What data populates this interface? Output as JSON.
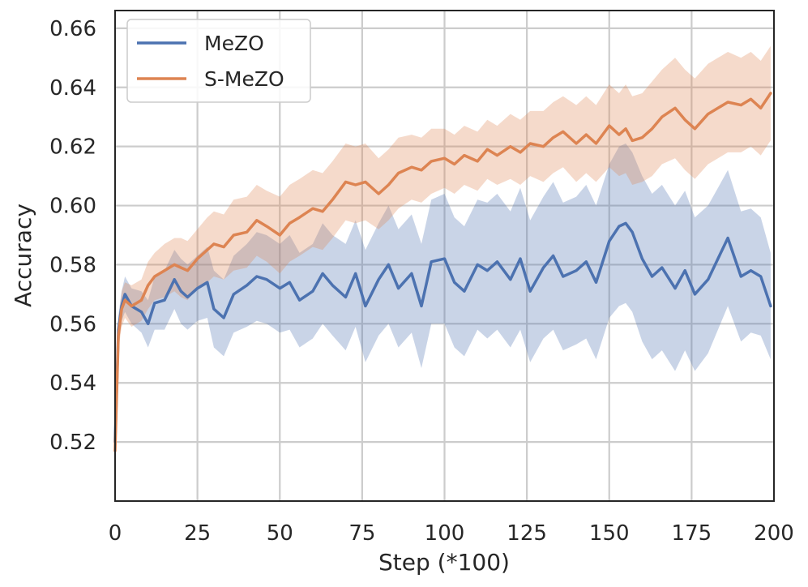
{
  "chart_data": {
    "type": "line",
    "xlabel": "Step (*100)",
    "ylabel": "Accuracy",
    "xlim": [
      0,
      200
    ],
    "ylim": [
      0.5,
      0.666
    ],
    "xticks": [
      0,
      25,
      50,
      75,
      100,
      125,
      150,
      175,
      200
    ],
    "yticks": [
      0.52,
      0.54,
      0.56,
      0.58,
      0.6,
      0.62,
      0.64,
      0.66
    ],
    "xtick_labels": [
      "0",
      "25",
      "50",
      "75",
      "100",
      "125",
      "150",
      "175",
      "200"
    ],
    "ytick_labels": [
      "0.52",
      "0.54",
      "0.56",
      "0.58",
      "0.60",
      "0.62",
      "0.64",
      "0.66"
    ],
    "grid": true,
    "legend": {
      "position": "top-left",
      "entries": [
        "MeZO",
        "S-MeZO"
      ]
    },
    "series": [
      {
        "name": "MeZO",
        "color": "#4c72b0",
        "x": [
          0,
          1,
          2,
          3,
          5,
          8,
          10,
          12,
          15,
          18,
          20,
          22,
          25,
          28,
          30,
          33,
          36,
          40,
          43,
          46,
          50,
          53,
          56,
          60,
          63,
          66,
          70,
          73,
          76,
          80,
          83,
          86,
          90,
          93,
          96,
          100,
          103,
          106,
          110,
          113,
          116,
          120,
          123,
          126,
          130,
          133,
          136,
          140,
          143,
          146,
          150,
          153,
          155,
          157,
          160,
          163,
          166,
          170,
          173,
          176,
          180,
          183,
          186,
          190,
          193,
          196,
          199
        ],
        "values": [
          0.52,
          0.558,
          0.566,
          0.57,
          0.566,
          0.564,
          0.56,
          0.567,
          0.568,
          0.575,
          0.571,
          0.569,
          0.572,
          0.574,
          0.565,
          0.562,
          0.57,
          0.573,
          0.576,
          0.575,
          0.572,
          0.574,
          0.568,
          0.571,
          0.577,
          0.573,
          0.569,
          0.577,
          0.566,
          0.575,
          0.58,
          0.572,
          0.577,
          0.566,
          0.581,
          0.582,
          0.574,
          0.571,
          0.58,
          0.578,
          0.581,
          0.575,
          0.582,
          0.571,
          0.579,
          0.583,
          0.576,
          0.578,
          0.581,
          0.574,
          0.588,
          0.593,
          0.594,
          0.591,
          0.582,
          0.576,
          0.579,
          0.572,
          0.578,
          0.57,
          0.575,
          0.582,
          0.589,
          0.576,
          0.578,
          0.576,
          0.566
        ],
        "spread": [
          0.0,
          0.005,
          0.005,
          0.006,
          0.006,
          0.007,
          0.008,
          0.009,
          0.01,
          0.01,
          0.011,
          0.011,
          0.011,
          0.012,
          0.013,
          0.013,
          0.013,
          0.014,
          0.015,
          0.015,
          0.015,
          0.016,
          0.016,
          0.016,
          0.017,
          0.017,
          0.018,
          0.018,
          0.019,
          0.019,
          0.02,
          0.02,
          0.02,
          0.021,
          0.021,
          0.022,
          0.022,
          0.022,
          0.022,
          0.023,
          0.023,
          0.023,
          0.024,
          0.024,
          0.024,
          0.025,
          0.025,
          0.025,
          0.026,
          0.026,
          0.026,
          0.027,
          0.027,
          0.027,
          0.028,
          0.028,
          0.028,
          0.028,
          0.027,
          0.026,
          0.025,
          0.024,
          0.023,
          0.022,
          0.021,
          0.02,
          0.018
        ]
      },
      {
        "name": "S-MeZO",
        "color": "#dd8452",
        "x": [
          0,
          1,
          2,
          3,
          5,
          8,
          10,
          12,
          15,
          18,
          20,
          22,
          25,
          28,
          30,
          33,
          36,
          40,
          43,
          46,
          50,
          53,
          56,
          60,
          63,
          66,
          70,
          73,
          76,
          80,
          83,
          86,
          90,
          93,
          96,
          100,
          103,
          106,
          110,
          113,
          116,
          120,
          123,
          126,
          130,
          133,
          136,
          140,
          143,
          146,
          150,
          153,
          155,
          157,
          160,
          163,
          166,
          170,
          173,
          176,
          180,
          183,
          186,
          190,
          193,
          196,
          199
        ],
        "values": [
          0.517,
          0.556,
          0.565,
          0.568,
          0.566,
          0.568,
          0.573,
          0.576,
          0.578,
          0.58,
          0.579,
          0.578,
          0.582,
          0.585,
          0.587,
          0.586,
          0.59,
          0.591,
          0.595,
          0.593,
          0.59,
          0.594,
          0.596,
          0.599,
          0.598,
          0.602,
          0.608,
          0.607,
          0.608,
          0.604,
          0.607,
          0.611,
          0.613,
          0.612,
          0.615,
          0.616,
          0.614,
          0.617,
          0.615,
          0.619,
          0.617,
          0.62,
          0.618,
          0.621,
          0.62,
          0.623,
          0.625,
          0.621,
          0.624,
          0.621,
          0.627,
          0.624,
          0.626,
          0.622,
          0.623,
          0.626,
          0.63,
          0.633,
          0.629,
          0.626,
          0.631,
          0.633,
          0.635,
          0.634,
          0.636,
          0.633,
          0.638
        ],
        "spread": [
          0.0,
          0.005,
          0.006,
          0.006,
          0.007,
          0.007,
          0.008,
          0.008,
          0.009,
          0.009,
          0.01,
          0.01,
          0.01,
          0.011,
          0.011,
          0.011,
          0.012,
          0.012,
          0.012,
          0.012,
          0.013,
          0.013,
          0.013,
          0.013,
          0.013,
          0.013,
          0.013,
          0.013,
          0.013,
          0.012,
          0.012,
          0.012,
          0.011,
          0.011,
          0.011,
          0.01,
          0.01,
          0.01,
          0.01,
          0.01,
          0.01,
          0.011,
          0.011,
          0.011,
          0.012,
          0.012,
          0.012,
          0.013,
          0.013,
          0.013,
          0.014,
          0.014,
          0.015,
          0.015,
          0.015,
          0.016,
          0.016,
          0.017,
          0.017,
          0.017,
          0.017,
          0.017,
          0.017,
          0.016,
          0.016,
          0.016,
          0.016
        ]
      }
    ]
  }
}
